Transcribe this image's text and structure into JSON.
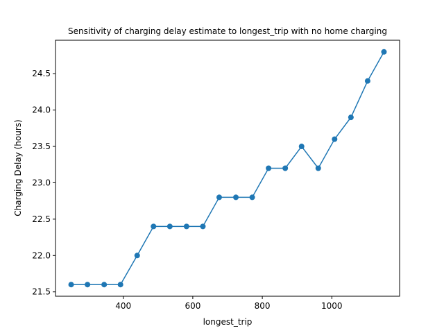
{
  "chart_data": {
    "type": "line",
    "title": "Sensitivity of charging delay estimate to longest_trip with no home charging",
    "xlabel": "longest_trip",
    "ylabel": "Charging Delay (hours)",
    "xlim": [
      205,
      1195
    ],
    "ylim": [
      21.44,
      24.96
    ],
    "x_ticks": [
      400,
      600,
      800,
      1000
    ],
    "y_ticks": [
      21.5,
      22.0,
      22.5,
      23.0,
      23.5,
      24.0,
      24.5
    ],
    "y_tick_labels": [
      "21.5",
      "22.0",
      "22.5",
      "23.0",
      "23.5",
      "24.0",
      "24.5"
    ],
    "grid": false,
    "series": [
      {
        "color": "#1f77b4",
        "marker": "circle",
        "x": [
          250,
          297,
          345,
          392,
          440,
          487,
          534,
          582,
          629,
          676,
          724,
          771,
          818,
          866,
          913,
          961,
          1008,
          1055,
          1103,
          1150
        ],
        "y": [
          21.6,
          21.6,
          21.6,
          21.6,
          22.0,
          22.4,
          22.4,
          22.4,
          22.4,
          22.8,
          22.8,
          22.8,
          23.2,
          23.2,
          23.5,
          23.2,
          23.6,
          23.9,
          24.4,
          24.8
        ]
      }
    ]
  }
}
